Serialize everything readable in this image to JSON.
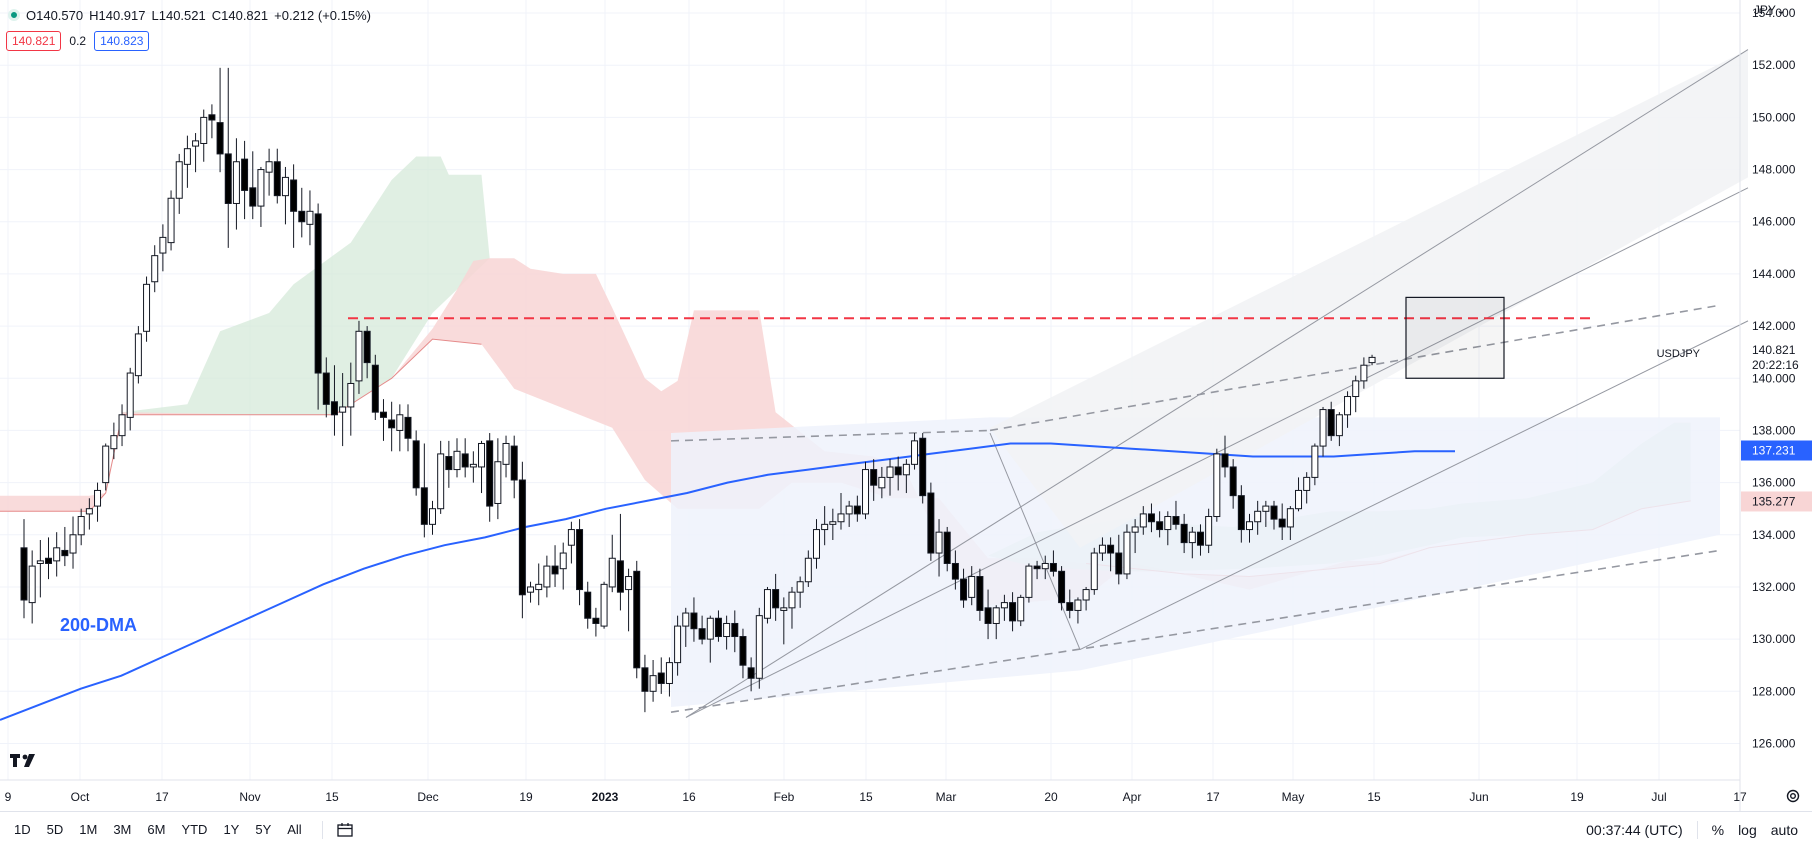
{
  "header": {
    "open": "O140.570",
    "high": "H140.917",
    "low": "L140.521",
    "close": "C140.821",
    "change": "+0.212 (+0.15%)",
    "bid": "140.821",
    "spread": "0.2",
    "ask": "140.823",
    "currency": "JPY"
  },
  "price_labels": {
    "last_price": "140.821",
    "symbol": "USDJPY",
    "countdown": "20:22:16",
    "ma_value": "137.231",
    "cloud_value": "135.277"
  },
  "annotations": {
    "ma_label": "200-DMA"
  },
  "bottom": {
    "ranges": [
      "1D",
      "5D",
      "1M",
      "3M",
      "6M",
      "YTD",
      "1Y",
      "5Y",
      "All"
    ],
    "clock": "00:37:44 (UTC)",
    "percent": "%",
    "log": "log",
    "auto": "auto"
  },
  "colors": {
    "up": "#ffffff",
    "down": "#000000",
    "ma": "#2962ff",
    "resistance": "#f23645",
    "cloud_bull": "#d6ead9",
    "cloud_bear": "#f8d5d5"
  },
  "chart_data": {
    "type": "candlestick",
    "title": "",
    "ylim": [
      124.6,
      154.5
    ],
    "y_ticks": [
      "154.000",
      "152.000",
      "150.000",
      "148.000",
      "146.000",
      "144.000",
      "142.000",
      "140.000",
      "138.000",
      "136.000",
      "134.000",
      "132.000",
      "130.000",
      "128.000",
      "126.000"
    ],
    "x_ticks": [
      "9",
      "Oct",
      "17",
      "Nov",
      "15",
      "Dec",
      "19",
      "2023",
      "16",
      "Feb",
      "15",
      "Mar",
      "20",
      "Apr",
      "17",
      "May",
      "15",
      "Jun",
      "19",
      "Jul",
      "17"
    ],
    "candles": [
      [
        133.5,
        134.6,
        130.8,
        131.5
      ],
      [
        131.4,
        133.4,
        130.6,
        132.8
      ],
      [
        132.9,
        133.8,
        131.6,
        133.0
      ],
      [
        133.1,
        133.9,
        132.3,
        132.9
      ],
      [
        133.0,
        134.1,
        132.4,
        133.5
      ],
      [
        133.4,
        134.3,
        132.8,
        133.2
      ],
      [
        133.3,
        134.7,
        132.7,
        134.0
      ],
      [
        134.0,
        135.0,
        133.6,
        134.7
      ],
      [
        134.8,
        135.4,
        134.2,
        135.0
      ],
      [
        135.1,
        136.0,
        134.5,
        135.7
      ],
      [
        136.0,
        137.5,
        135.7,
        137.4
      ],
      [
        137.3,
        138.3,
        136.9,
        137.8
      ],
      [
        137.8,
        139.0,
        137.4,
        138.6
      ],
      [
        138.5,
        140.4,
        138.0,
        140.2
      ],
      [
        140.1,
        142.0,
        139.8,
        141.7
      ],
      [
        141.8,
        143.9,
        141.4,
        143.6
      ],
      [
        143.7,
        145.1,
        143.3,
        144.7
      ],
      [
        144.8,
        145.9,
        144.1,
        145.4
      ],
      [
        145.2,
        147.2,
        144.9,
        146.9
      ],
      [
        146.9,
        148.6,
        146.3,
        148.3
      ],
      [
        148.2,
        149.3,
        147.3,
        148.8
      ],
      [
        148.9,
        149.4,
        147.9,
        149.1
      ],
      [
        149.0,
        150.3,
        148.3,
        150.0
      ],
      [
        150.1,
        150.5,
        149.2,
        149.9
      ],
      [
        149.8,
        151.9,
        147.9,
        148.6
      ],
      [
        148.6,
        151.9,
        145.0,
        146.7
      ],
      [
        146.7,
        149.2,
        145.7,
        148.3
      ],
      [
        148.4,
        149.1,
        146.1,
        147.2
      ],
      [
        147.3,
        148.7,
        146.1,
        146.6
      ],
      [
        146.6,
        148.1,
        145.8,
        148.0
      ],
      [
        147.9,
        148.8,
        147.0,
        148.3
      ],
      [
        148.3,
        148.8,
        146.7,
        147.0
      ],
      [
        147.0,
        148.1,
        145.9,
        147.7
      ],
      [
        147.6,
        148.2,
        145.0,
        146.4
      ],
      [
        146.4,
        147.3,
        145.4,
        146.0
      ],
      [
        145.9,
        147.2,
        145.1,
        146.4
      ],
      [
        146.3,
        146.7,
        138.8,
        140.2
      ],
      [
        140.2,
        140.8,
        138.5,
        139.0
      ],
      [
        139.1,
        140.5,
        137.8,
        138.6
      ],
      [
        138.7,
        140.2,
        137.4,
        138.9
      ],
      [
        138.9,
        140.6,
        137.8,
        139.8
      ],
      [
        139.9,
        142.2,
        139.4,
        141.8
      ],
      [
        141.8,
        142.0,
        140.0,
        140.6
      ],
      [
        140.5,
        140.9,
        138.4,
        138.7
      ],
      [
        138.7,
        139.2,
        137.6,
        138.5
      ],
      [
        138.4,
        139.1,
        137.2,
        138.1
      ],
      [
        138.0,
        139.0,
        137.2,
        138.6
      ],
      [
        138.5,
        139.0,
        137.2,
        137.7
      ],
      [
        137.6,
        138.0,
        135.5,
        135.8
      ],
      [
        135.8,
        137.5,
        133.9,
        134.4
      ],
      [
        134.4,
        135.3,
        134.0,
        135.0
      ],
      [
        135.0,
        137.6,
        134.8,
        137.1
      ],
      [
        137.0,
        137.6,
        135.8,
        136.5
      ],
      [
        136.5,
        137.7,
        136.2,
        137.2
      ],
      [
        137.1,
        137.7,
        136.2,
        136.6
      ],
      [
        136.6,
        137.2,
        136.0,
        136.7
      ],
      [
        136.6,
        137.6,
        135.6,
        137.5
      ],
      [
        137.6,
        137.9,
        134.5,
        135.1
      ],
      [
        135.2,
        137.7,
        134.6,
        136.8
      ],
      [
        136.7,
        137.8,
        136.2,
        137.5
      ],
      [
        137.4,
        137.8,
        135.4,
        136.1
      ],
      [
        136.1,
        136.8,
        130.8,
        131.7
      ],
      [
        131.8,
        132.2,
        131.4,
        132.0
      ],
      [
        131.9,
        132.9,
        131.3,
        132.1
      ],
      [
        132.0,
        133.2,
        131.6,
        132.8
      ],
      [
        132.8,
        133.6,
        132.0,
        132.5
      ],
      [
        132.7,
        133.7,
        131.9,
        133.3
      ],
      [
        133.6,
        134.5,
        132.9,
        134.2
      ],
      [
        134.2,
        134.6,
        131.3,
        131.9
      ],
      [
        131.8,
        132.2,
        130.4,
        130.8
      ],
      [
        130.8,
        131.2,
        130.1,
        130.6
      ],
      [
        130.5,
        132.2,
        130.4,
        132.1
      ],
      [
        132.0,
        134.0,
        131.8,
        133.1
      ],
      [
        133.0,
        134.8,
        131.1,
        131.8
      ],
      [
        131.9,
        132.7,
        130.3,
        132.4
      ],
      [
        132.6,
        133.0,
        128.5,
        128.9
      ],
      [
        128.9,
        129.4,
        127.2,
        128.0
      ],
      [
        128.0,
        129.2,
        127.6,
        128.6
      ],
      [
        128.7,
        129.3,
        127.9,
        128.3
      ],
      [
        128.3,
        129.3,
        127.8,
        129.1
      ],
      [
        129.1,
        130.9,
        128.6,
        130.5
      ],
      [
        130.5,
        131.2,
        129.7,
        131.0
      ],
      [
        131.0,
        131.6,
        129.9,
        130.4
      ],
      [
        130.4,
        130.9,
        129.8,
        130.0
      ],
      [
        130.0,
        130.9,
        129.1,
        130.8
      ],
      [
        130.8,
        131.1,
        129.9,
        130.1
      ],
      [
        130.1,
        130.9,
        129.6,
        130.6
      ],
      [
        130.6,
        131.1,
        129.5,
        130.1
      ],
      [
        130.1,
        130.4,
        128.5,
        129.0
      ],
      [
        128.9,
        129.3,
        128.0,
        128.5
      ],
      [
        128.5,
        131.2,
        128.1,
        130.9
      ],
      [
        130.8,
        132.0,
        130.6,
        131.9
      ],
      [
        131.9,
        132.5,
        130.7,
        131.2
      ],
      [
        131.1,
        131.6,
        129.8,
        131.2
      ],
      [
        131.2,
        132.0,
        130.4,
        131.8
      ],
      [
        131.8,
        132.4,
        131.2,
        132.2
      ],
      [
        132.2,
        133.4,
        132.0,
        133.1
      ],
      [
        133.1,
        134.6,
        132.7,
        134.2
      ],
      [
        134.2,
        135.1,
        133.6,
        134.4
      ],
      [
        134.4,
        135.0,
        133.8,
        134.5
      ],
      [
        134.5,
        135.6,
        134.2,
        134.8
      ],
      [
        134.8,
        135.3,
        134.3,
        135.1
      ],
      [
        135.1,
        135.5,
        134.5,
        134.8
      ],
      [
        134.8,
        136.8,
        134.6,
        136.5
      ],
      [
        136.5,
        136.9,
        135.3,
        135.9
      ],
      [
        135.8,
        136.6,
        135.4,
        136.2
      ],
      [
        136.2,
        136.9,
        135.5,
        136.6
      ],
      [
        136.6,
        137.0,
        135.7,
        136.3
      ],
      [
        136.3,
        136.9,
        135.6,
        136.7
      ],
      [
        136.7,
        137.9,
        136.5,
        137.6
      ],
      [
        137.7,
        137.9,
        135.2,
        135.5
      ],
      [
        135.6,
        136.0,
        133.0,
        133.3
      ],
      [
        133.3,
        134.6,
        132.4,
        134.1
      ],
      [
        134.1,
        134.3,
        132.6,
        132.9
      ],
      [
        132.9,
        133.4,
        131.9,
        132.3
      ],
      [
        132.3,
        132.7,
        131.2,
        131.5
      ],
      [
        131.6,
        132.8,
        131.3,
        132.4
      ],
      [
        132.4,
        132.7,
        130.7,
        131.1
      ],
      [
        131.2,
        131.9,
        130.0,
        130.6
      ],
      [
        130.6,
        131.3,
        130.0,
        131.2
      ],
      [
        131.2,
        131.7,
        130.7,
        131.4
      ],
      [
        131.4,
        131.8,
        130.3,
        130.7
      ],
      [
        130.7,
        131.7,
        130.5,
        131.6
      ],
      [
        131.6,
        132.9,
        131.4,
        132.8
      ],
      [
        132.8,
        133.0,
        132.3,
        132.7
      ],
      [
        132.7,
        133.2,
        132.3,
        132.9
      ],
      [
        132.9,
        133.4,
        132.4,
        132.6
      ],
      [
        132.6,
        132.8,
        131.1,
        131.4
      ],
      [
        131.4,
        131.9,
        130.8,
        131.1
      ],
      [
        131.1,
        131.6,
        130.6,
        131.5
      ],
      [
        131.5,
        132.0,
        131.1,
        131.9
      ],
      [
        131.9,
        133.5,
        131.7,
        133.3
      ],
      [
        133.3,
        133.9,
        133.0,
        133.6
      ],
      [
        133.6,
        133.9,
        132.6,
        133.3
      ],
      [
        133.3,
        134.0,
        132.1,
        132.5
      ],
      [
        132.5,
        134.4,
        132.3,
        134.1
      ],
      [
        134.1,
        134.6,
        133.3,
        134.3
      ],
      [
        134.3,
        135.1,
        134.0,
        134.8
      ],
      [
        134.8,
        135.2,
        134.1,
        134.5
      ],
      [
        134.5,
        134.9,
        133.9,
        134.2
      ],
      [
        134.2,
        134.9,
        133.6,
        134.7
      ],
      [
        134.7,
        135.3,
        134.2,
        134.4
      ],
      [
        134.4,
        134.8,
        133.3,
        133.7
      ],
      [
        133.7,
        134.3,
        133.1,
        134.1
      ],
      [
        134.1,
        134.4,
        133.2,
        133.6
      ],
      [
        133.6,
        135.0,
        133.3,
        134.7
      ],
      [
        134.7,
        137.3,
        134.5,
        137.1
      ],
      [
        137.1,
        137.8,
        136.2,
        136.6
      ],
      [
        136.6,
        136.9,
        135.0,
        135.5
      ],
      [
        135.5,
        135.9,
        133.7,
        134.2
      ],
      [
        134.2,
        134.8,
        133.7,
        134.5
      ],
      [
        134.5,
        135.3,
        134.0,
        134.9
      ],
      [
        134.9,
        135.3,
        134.3,
        135.1
      ],
      [
        135.1,
        135.3,
        134.2,
        134.6
      ],
      [
        134.6,
        135.2,
        133.8,
        134.3
      ],
      [
        134.3,
        135.1,
        133.8,
        135.0
      ],
      [
        135.0,
        136.2,
        134.9,
        135.7
      ],
      [
        135.7,
        136.4,
        135.2,
        136.2
      ],
      [
        136.2,
        137.5,
        135.9,
        137.4
      ],
      [
        137.4,
        138.9,
        137.0,
        138.8
      ],
      [
        138.8,
        139.1,
        137.6,
        137.8
      ],
      [
        137.8,
        138.7,
        137.4,
        138.6
      ],
      [
        138.6,
        139.5,
        138.1,
        139.3
      ],
      [
        139.3,
        140.1,
        138.7,
        139.9
      ],
      [
        139.9,
        140.8,
        139.6,
        140.5
      ],
      [
        140.6,
        140.9,
        140.5,
        140.8
      ]
    ],
    "ma200": [
      [
        0,
        126.9
      ],
      [
        10,
        127.5
      ],
      [
        20,
        128.1
      ],
      [
        30,
        128.6
      ],
      [
        40,
        129.3
      ],
      [
        50,
        130.0
      ],
      [
        60,
        130.7
      ],
      [
        70,
        131.4
      ],
      [
        80,
        132.1
      ],
      [
        90,
        132.7
      ],
      [
        100,
        133.2
      ],
      [
        110,
        133.6
      ],
      [
        120,
        133.9
      ],
      [
        130,
        134.3
      ],
      [
        140,
        134.6
      ],
      [
        150,
        135.0
      ],
      [
        160,
        135.3
      ],
      [
        170,
        135.6
      ],
      [
        180,
        136.0
      ],
      [
        190,
        136.3
      ],
      [
        200,
        136.5
      ],
      [
        210,
        136.7
      ],
      [
        220,
        136.9
      ],
      [
        230,
        137.1
      ],
      [
        240,
        137.3
      ],
      [
        250,
        137.5
      ],
      [
        260,
        137.5
      ],
      [
        270,
        137.4
      ],
      [
        280,
        137.3
      ],
      [
        290,
        137.2
      ],
      [
        300,
        137.1
      ],
      [
        310,
        137.0
      ],
      [
        320,
        137.0
      ],
      [
        330,
        137.0
      ],
      [
        340,
        137.1
      ],
      [
        350,
        137.2
      ],
      [
        360,
        137.2
      ]
    ]
  }
}
